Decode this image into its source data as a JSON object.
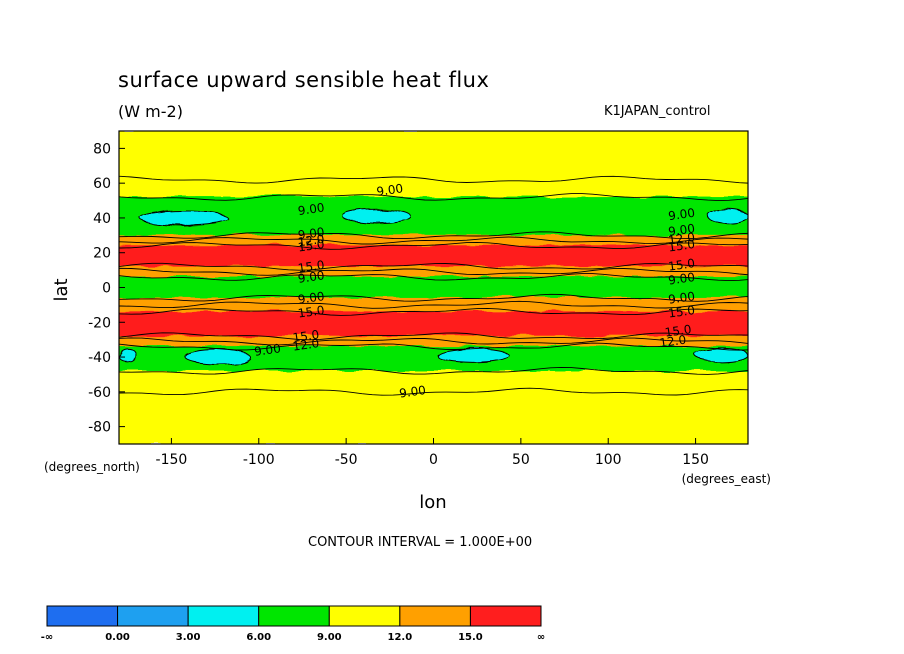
{
  "chart_data": {
    "type": "heatmap",
    "title": "surface upward sensible heat flux",
    "units": "(W m-2)",
    "run_label": "K1JAPAN_control",
    "xlabel": "lon",
    "ylabel": "lat",
    "x_units_note": "(degrees_east)",
    "y_units_note": "(degrees_north)",
    "xlim": [
      -180,
      180
    ],
    "ylim": [
      -90,
      90
    ],
    "x_ticks": [
      -150,
      -100,
      -50,
      0,
      50,
      100,
      150
    ],
    "y_ticks": [
      80,
      60,
      40,
      20,
      0,
      -20,
      -40,
      -60,
      -80
    ],
    "contour_interval_text": "CONTOUR INTERVAL = 1.000E+00",
    "levels": [
      0,
      3,
      6,
      9,
      12,
      15
    ],
    "colorbar": {
      "labels": [
        "-∞",
        "0.00",
        "3.00",
        "6.00",
        "9.00",
        "12.0",
        "15.0",
        "∞"
      ],
      "colors": [
        "#1e6ef0",
        "#1ea0f0",
        "#00f0f0",
        "#00e600",
        "#ffff00",
        "#ffa000",
        "#ff1e1e"
      ]
    },
    "zonal_bands": [
      {
        "lat_from": 90,
        "lat_to": 62,
        "class": "9-12"
      },
      {
        "lat_from": 62,
        "lat_to": 52,
        "class": "9-12 with 6-9 patches"
      },
      {
        "lat_from": 52,
        "lat_to": 30,
        "class": "6-9 with 3-6 cores"
      },
      {
        "lat_from": 30,
        "lat_to": 24,
        "class": "12-15"
      },
      {
        "lat_from": 24,
        "lat_to": 12,
        "class": ">15"
      },
      {
        "lat_from": 12,
        "lat_to": 6,
        "class": "12-15"
      },
      {
        "lat_from": 6,
        "lat_to": -6,
        "class": "6-9"
      },
      {
        "lat_from": -6,
        "lat_to": -14,
        "class": "12-15"
      },
      {
        "lat_from": -14,
        "lat_to": -28,
        "class": ">15"
      },
      {
        "lat_from": -28,
        "lat_to": -34,
        "class": "12-15"
      },
      {
        "lat_from": -34,
        "lat_to": -48,
        "class": "6-9 with 3-6 cores"
      },
      {
        "lat_from": -48,
        "lat_to": -90,
        "class": "9-12 with 6-9 patches"
      }
    ],
    "contour_labels": [
      {
        "text": "9.00",
        "lon": -25,
        "lat": 56
      },
      {
        "text": "9.00",
        "lon": -70,
        "lat": 45
      },
      {
        "text": "9.00",
        "lon": -70,
        "lat": 31
      },
      {
        "text": "12.0",
        "lon": -70,
        "lat": 27
      },
      {
        "text": "15.0",
        "lon": -70,
        "lat": 24
      },
      {
        "text": "15.0",
        "lon": -70,
        "lat": 12
      },
      {
        "text": "9.00",
        "lon": -70,
        "lat": 6
      },
      {
        "text": "9.00",
        "lon": -70,
        "lat": -6
      },
      {
        "text": "15.0",
        "lon": -70,
        "lat": -14
      },
      {
        "text": "15.0",
        "lon": -73,
        "lat": -28
      },
      {
        "text": "12.0",
        "lon": -73,
        "lat": -33
      },
      {
        "text": "9.00",
        "lon": -95,
        "lat": -36
      },
      {
        "text": "9.00",
        "lon": -12,
        "lat": -60
      },
      {
        "text": "9.00",
        "lon": 142,
        "lat": 42
      },
      {
        "text": "9.00",
        "lon": 142,
        "lat": 33
      },
      {
        "text": "12.0",
        "lon": 142,
        "lat": 28
      },
      {
        "text": "15.0",
        "lon": 142,
        "lat": 24
      },
      {
        "text": "15.0",
        "lon": 142,
        "lat": 13
      },
      {
        "text": "9.00",
        "lon": 142,
        "lat": 5
      },
      {
        "text": "9.00",
        "lon": 142,
        "lat": -6
      },
      {
        "text": "15.0",
        "lon": 142,
        "lat": -14
      },
      {
        "text": "15.0",
        "lon": 140,
        "lat": -25
      },
      {
        "text": "12.0",
        "lon": 137,
        "lat": -31
      }
    ],
    "cores": [
      {
        "lat": 40,
        "lon_from": -168,
        "lon_to": -118,
        "class": "3-6"
      },
      {
        "lat": 41,
        "lon_from": -52,
        "lon_to": -13,
        "class": "3-6"
      },
      {
        "lat": 41,
        "lon_from": 157,
        "lon_to": 180,
        "class": "3-6"
      },
      {
        "lat": -39,
        "lon_from": -180,
        "lon_to": -170,
        "class": "3-6"
      },
      {
        "lat": -40,
        "lon_from": -142,
        "lon_to": -105,
        "class": "3-6"
      },
      {
        "lat": -39,
        "lon_from": 2,
        "lon_to": 43,
        "class": "3-6"
      },
      {
        "lat": -39,
        "lon_from": 150,
        "lon_to": 180,
        "class": "3-6"
      }
    ]
  }
}
